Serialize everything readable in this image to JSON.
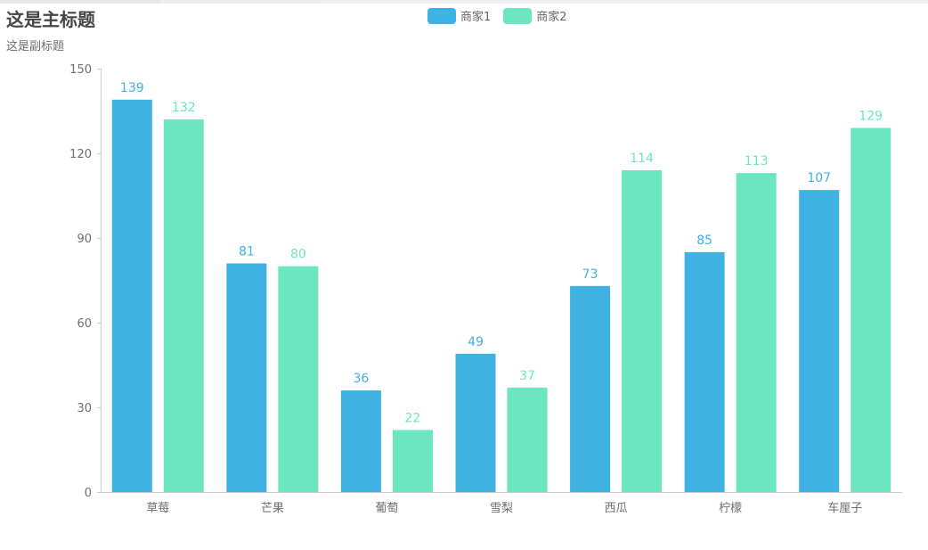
{
  "chart_data": {
    "type": "bar",
    "title": "这是主标题",
    "subtitle": "这是副标题",
    "categories": [
      "草莓",
      "芒果",
      "葡萄",
      "雪梨",
      "西瓜",
      "柠檬",
      "车厘子"
    ],
    "series": [
      {
        "name": "商家1",
        "color": "#3fb1e3",
        "values": [
          139,
          81,
          36,
          49,
          73,
          85,
          107
        ]
      },
      {
        "name": "商家2",
        "color": "#6be6c1",
        "values": [
          132,
          80,
          22,
          37,
          114,
          113,
          129
        ]
      }
    ],
    "ylim": [
      0,
      150
    ],
    "yticks": [
      0,
      30,
      60,
      90,
      120,
      150
    ],
    "grid": false,
    "legend_position": "top-center",
    "data_labels": true
  }
}
